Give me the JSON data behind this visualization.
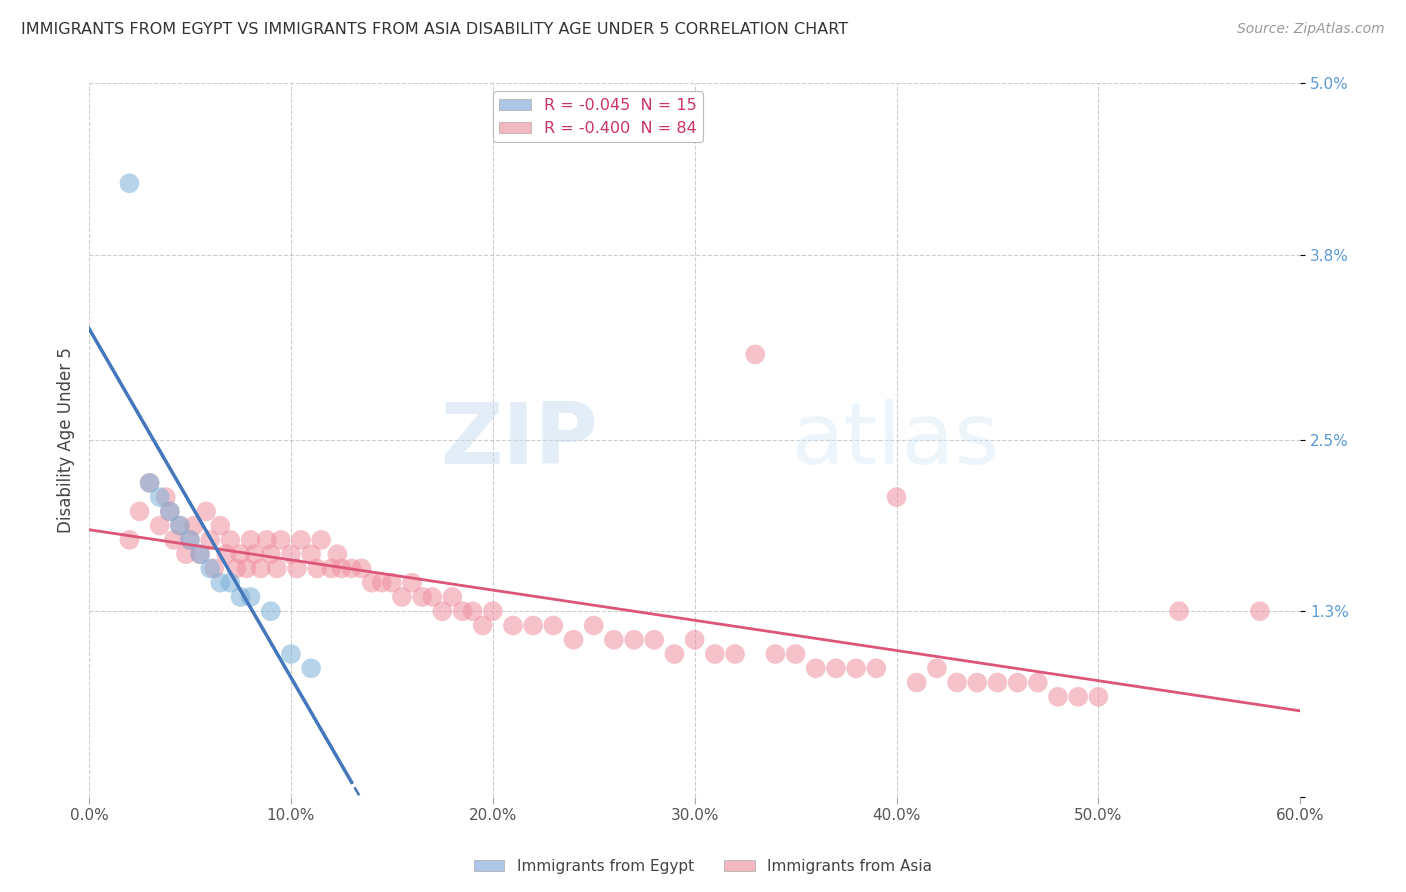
{
  "title": "IMMIGRANTS FROM EGYPT VS IMMIGRANTS FROM ASIA DISABILITY AGE UNDER 5 CORRELATION CHART",
  "source": "Source: ZipAtlas.com",
  "ylabel": "Disability Age Under 5",
  "xlim": [
    0.0,
    0.6
  ],
  "ylim": [
    0.0,
    0.05
  ],
  "xtick_vals": [
    0.0,
    0.1,
    0.2,
    0.3,
    0.4,
    0.5,
    0.6
  ],
  "ytick_vals": [
    0.0,
    0.013,
    0.025,
    0.038,
    0.05
  ],
  "ytick_labels": [
    "",
    "1.3%",
    "2.5%",
    "3.8%",
    "5.0%"
  ],
  "legend1_label": "R = -0.045  N = 15",
  "legend2_label": "R = -0.400  N = 84",
  "legend1_color": "#aec6e8",
  "legend2_color": "#f4b8c1",
  "series1_color": "#7ab0d8",
  "series2_color": "#f090a0",
  "trendline1_color": "#4477bb",
  "trendline2_color": "#dd5577",
  "background_color": "#ffffff",
  "grid_color": "#cccccc",
  "watermark_part1": "ZIP",
  "watermark_part2": "atlas",
  "egypt_x": [
    0.02,
    0.03,
    0.035,
    0.04,
    0.045,
    0.05,
    0.055,
    0.06,
    0.065,
    0.07,
    0.075,
    0.08,
    0.09,
    0.1,
    0.11
  ],
  "egypt_y": [
    0.043,
    0.022,
    0.021,
    0.02,
    0.019,
    0.018,
    0.017,
    0.016,
    0.015,
    0.015,
    0.014,
    0.014,
    0.013,
    0.01,
    0.009
  ],
  "asia_x": [
    0.02,
    0.025,
    0.03,
    0.035,
    0.038,
    0.04,
    0.042,
    0.045,
    0.048,
    0.05,
    0.052,
    0.055,
    0.058,
    0.06,
    0.062,
    0.065,
    0.068,
    0.07,
    0.073,
    0.075,
    0.078,
    0.08,
    0.082,
    0.085,
    0.088,
    0.09,
    0.093,
    0.095,
    0.1,
    0.103,
    0.105,
    0.11,
    0.113,
    0.115,
    0.12,
    0.123,
    0.125,
    0.13,
    0.135,
    0.14,
    0.145,
    0.15,
    0.155,
    0.16,
    0.165,
    0.17,
    0.175,
    0.18,
    0.185,
    0.19,
    0.195,
    0.2,
    0.21,
    0.22,
    0.23,
    0.24,
    0.25,
    0.26,
    0.27,
    0.28,
    0.29,
    0.3,
    0.31,
    0.32,
    0.33,
    0.34,
    0.35,
    0.36,
    0.37,
    0.38,
    0.39,
    0.4,
    0.41,
    0.42,
    0.43,
    0.44,
    0.45,
    0.46,
    0.47,
    0.48,
    0.49,
    0.5,
    0.54,
    0.58
  ],
  "asia_y": [
    0.018,
    0.02,
    0.022,
    0.019,
    0.021,
    0.02,
    0.018,
    0.019,
    0.017,
    0.018,
    0.019,
    0.017,
    0.02,
    0.018,
    0.016,
    0.019,
    0.017,
    0.018,
    0.016,
    0.017,
    0.016,
    0.018,
    0.017,
    0.016,
    0.018,
    0.017,
    0.016,
    0.018,
    0.017,
    0.016,
    0.018,
    0.017,
    0.016,
    0.018,
    0.016,
    0.017,
    0.016,
    0.016,
    0.016,
    0.015,
    0.015,
    0.015,
    0.014,
    0.015,
    0.014,
    0.014,
    0.013,
    0.014,
    0.013,
    0.013,
    0.012,
    0.013,
    0.012,
    0.012,
    0.012,
    0.011,
    0.012,
    0.011,
    0.011,
    0.011,
    0.01,
    0.011,
    0.01,
    0.01,
    0.031,
    0.01,
    0.01,
    0.009,
    0.009,
    0.009,
    0.009,
    0.021,
    0.008,
    0.009,
    0.008,
    0.008,
    0.008,
    0.008,
    0.008,
    0.007,
    0.007,
    0.007,
    0.013,
    0.013
  ]
}
